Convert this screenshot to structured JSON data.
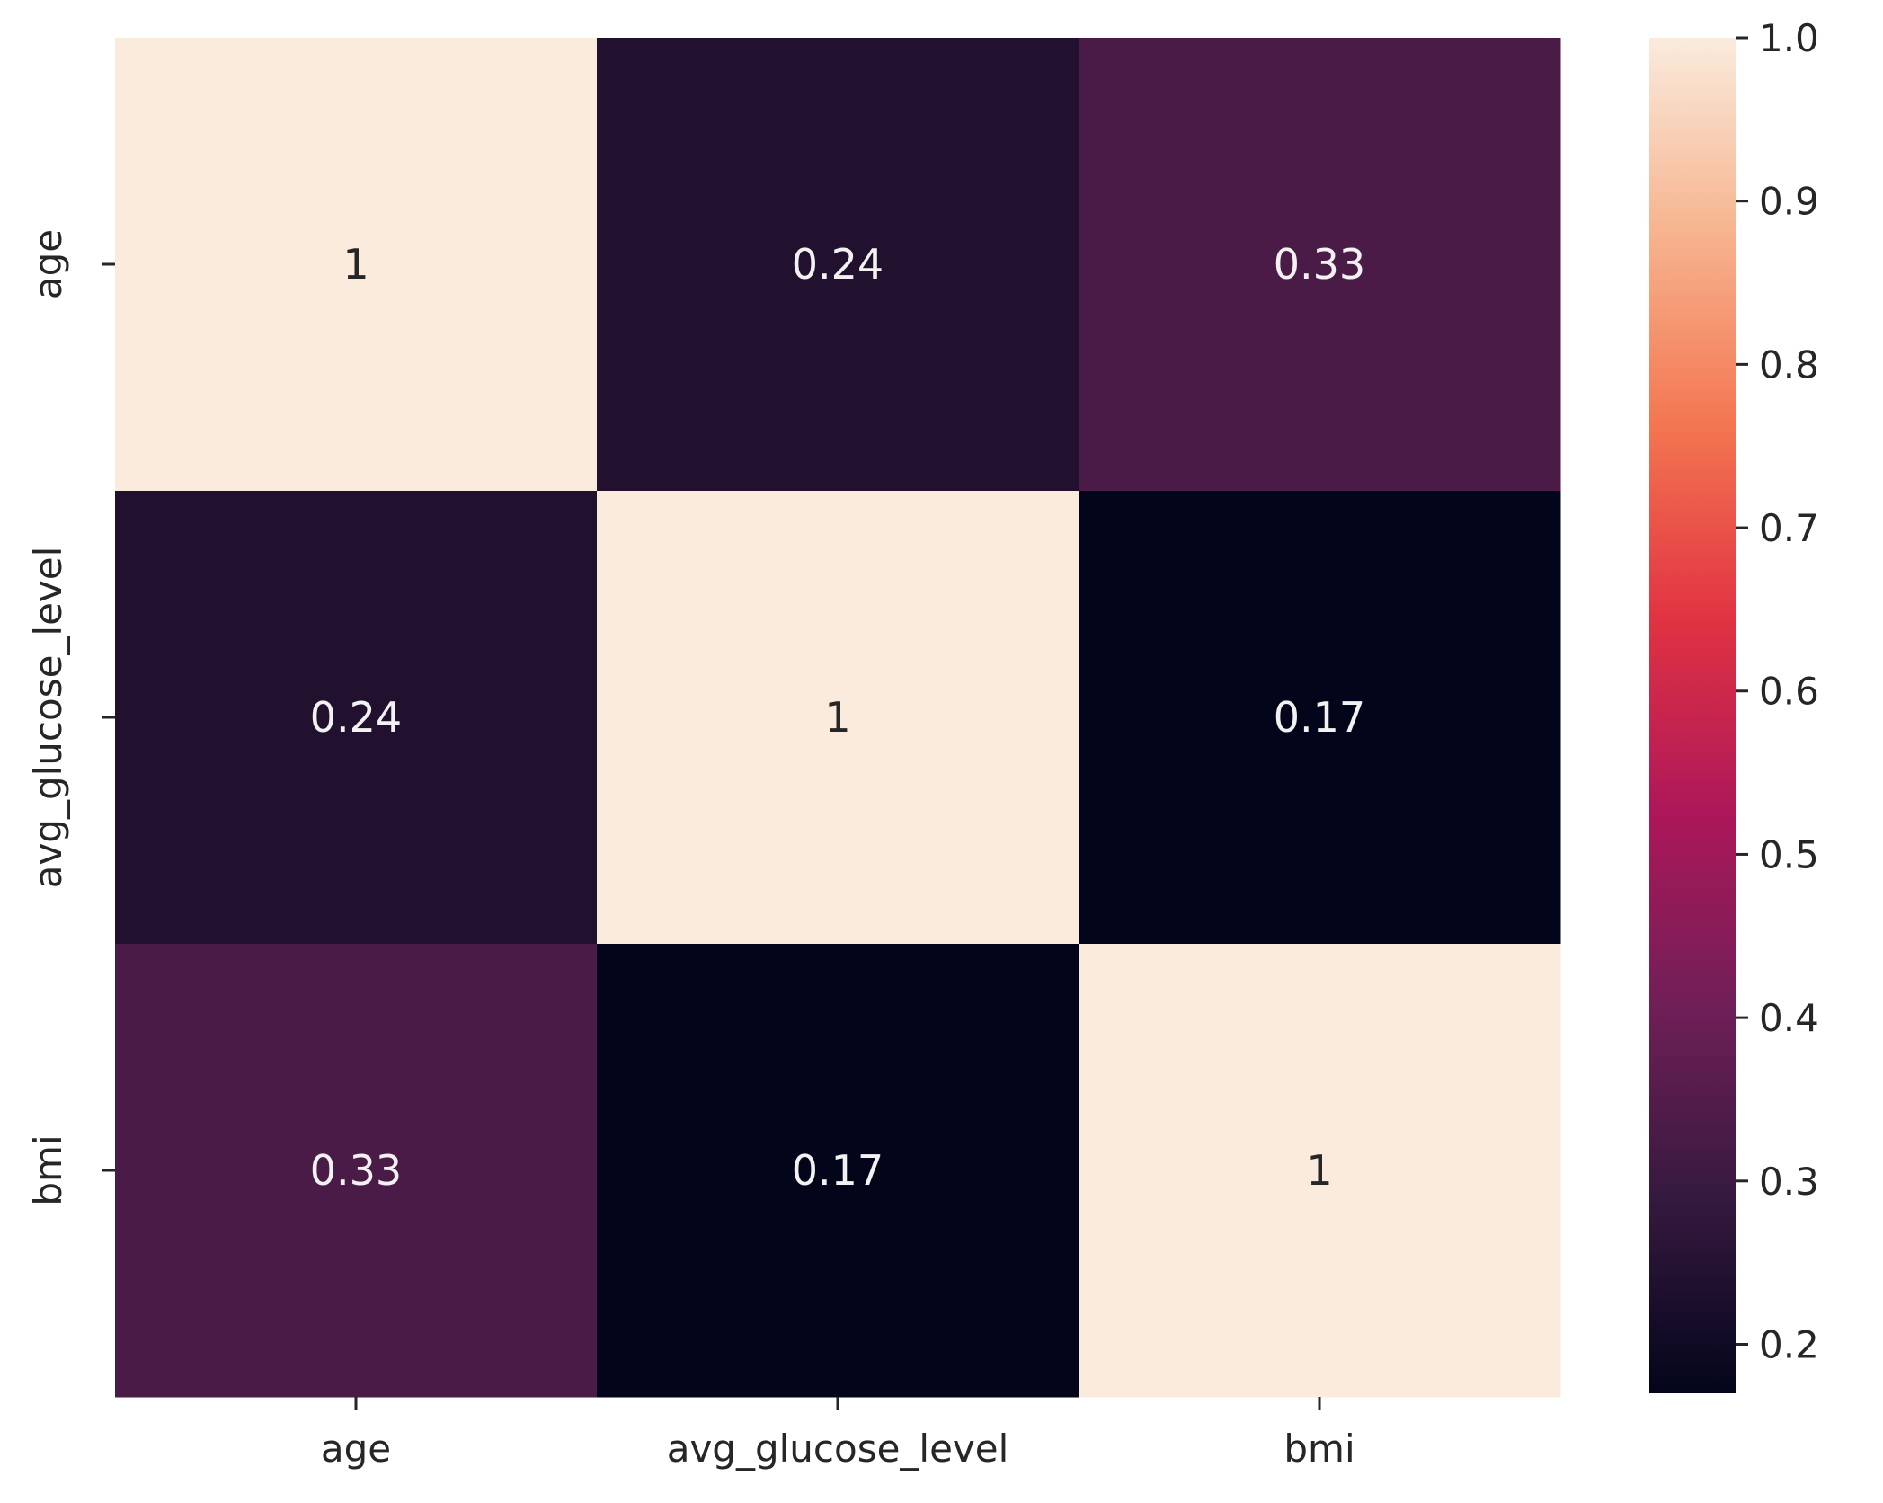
{
  "chart_data": {
    "type": "heatmap",
    "title": "",
    "xlabel": "",
    "ylabel": "",
    "x_categories": [
      "age",
      "avg_glucose_level",
      "bmi"
    ],
    "y_categories": [
      "age",
      "avg_glucose_level",
      "bmi"
    ],
    "values": [
      [
        1,
        0.24,
        0.33
      ],
      [
        0.24,
        1,
        0.17
      ],
      [
        0.33,
        0.17,
        1
      ]
    ],
    "annotations": [
      [
        "1",
        "0.24",
        "0.33"
      ],
      [
        "0.24",
        "1",
        "0.17"
      ],
      [
        "0.33",
        "0.17",
        "1"
      ]
    ],
    "colorbar": {
      "vmin": 0.17,
      "vmax": 1.0,
      "ticks": [
        0.2,
        0.3,
        0.4,
        0.5,
        0.6,
        0.7,
        0.8,
        0.9,
        1.0
      ],
      "tick_labels": [
        "0.2",
        "0.3",
        "0.4",
        "0.5",
        "0.6",
        "0.7",
        "0.8",
        "0.9",
        "1.0"
      ],
      "colormap": "rocket"
    },
    "colormap_stops": [
      "#03051a",
      "#35193e",
      "#701f57",
      "#ad1759",
      "#e13342",
      "#f37651",
      "#f6b48f",
      "#faebdd"
    ]
  }
}
